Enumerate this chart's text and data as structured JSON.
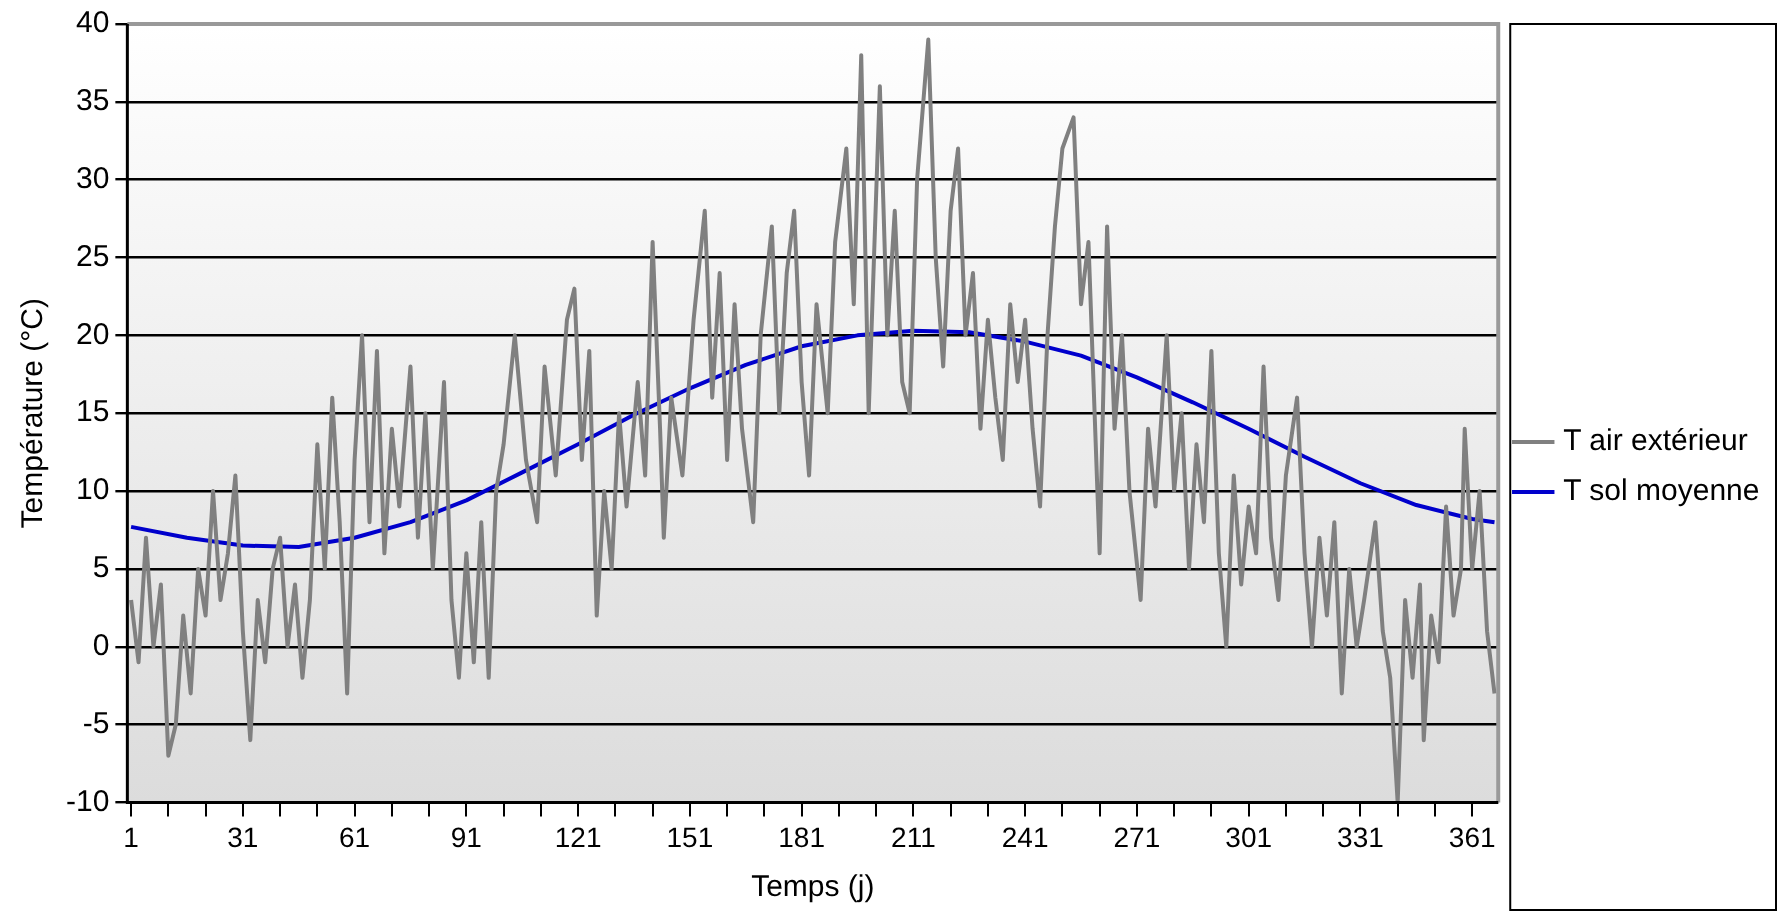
{
  "chart_data": {
    "type": "line",
    "xlabel": "Temps (j)",
    "ylabel": "Température (°C)",
    "xlim": [
      0,
      368
    ],
    "ylim": [
      -10,
      40
    ],
    "xticks": [
      1,
      {
        "value": 11,
        "label": null
      },
      {
        "value": 21,
        "label": null
      },
      31,
      {
        "value": 41,
        "label": null
      },
      {
        "value": 51,
        "label": null
      },
      61,
      {
        "value": 71,
        "label": null
      },
      {
        "value": 81,
        "label": null
      },
      91,
      {
        "value": 101,
        "label": null
      },
      {
        "value": 111,
        "label": null
      },
      121,
      {
        "value": 131,
        "label": null
      },
      {
        "value": 141,
        "label": null
      },
      151,
      {
        "value": 161,
        "label": null
      },
      {
        "value": 171,
        "label": null
      },
      181,
      {
        "value": 191,
        "label": null
      },
      {
        "value": 201,
        "label": null
      },
      211,
      {
        "value": 221,
        "label": null
      },
      {
        "value": 231,
        "label": null
      },
      241,
      {
        "value": 251,
        "label": null
      },
      {
        "value": 261,
        "label": null
      },
      271,
      {
        "value": 281,
        "label": null
      },
      {
        "value": 291,
        "label": null
      },
      301,
      {
        "value": 311,
        "label": null
      },
      {
        "value": 321,
        "label": null
      },
      331,
      {
        "value": 341,
        "label": null
      },
      {
        "value": 351,
        "label": null
      },
      361
    ],
    "yticks": [
      -10,
      -5,
      0,
      5,
      10,
      15,
      20,
      25,
      30,
      35,
      40
    ],
    "grid": "y",
    "legend": "right",
    "marker": "none",
    "line_style": "solid",
    "series": [
      {
        "name": "T air extérieur",
        "color": "#808080",
        "x": [
          1,
          3,
          5,
          7,
          9,
          11,
          13,
          15,
          17,
          19,
          21,
          23,
          25,
          27,
          29,
          31,
          33,
          35,
          37,
          39,
          41,
          43,
          45,
          47,
          49,
          51,
          53,
          55,
          57,
          59,
          61,
          63,
          65,
          67,
          69,
          71,
          73,
          76,
          78,
          80,
          82,
          85,
          87,
          89,
          91,
          93,
          95,
          97,
          99,
          101,
          104,
          107,
          110,
          112,
          115,
          118,
          120,
          122,
          124,
          126,
          128,
          130,
          132,
          134,
          137,
          139,
          141,
          143,
          144,
          146,
          149,
          152,
          155,
          157,
          159,
          161,
          163,
          165,
          168,
          170,
          173,
          175,
          177,
          179,
          181,
          183,
          185,
          188,
          190,
          193,
          195,
          197,
          199,
          202,
          204,
          206,
          208,
          210,
          212,
          215,
          217,
          219,
          221,
          223,
          225,
          227,
          229,
          231,
          233,
          235,
          237,
          239,
          241,
          243,
          245,
          247,
          249,
          251,
          254,
          256,
          258,
          261,
          263,
          265,
          267,
          269,
          272,
          274,
          276,
          279,
          281,
          283,
          285,
          287,
          289,
          291,
          293,
          295,
          297,
          299,
          301,
          303,
          305,
          307,
          309,
          311,
          314,
          316,
          318,
          320,
          322,
          324,
          326,
          328,
          330,
          332,
          335,
          337,
          339,
          341,
          343,
          345,
          347,
          348,
          350,
          352,
          354,
          356,
          358,
          359,
          361,
          363,
          365,
          367
        ],
        "values": [
          3,
          -1,
          7,
          0,
          4,
          -7,
          -5,
          2,
          -3,
          5,
          2,
          10,
          3,
          6,
          11,
          1,
          -6,
          3,
          -1,
          5,
          7,
          0,
          4,
          -2,
          3,
          13,
          5,
          16,
          8,
          -3,
          12,
          20,
          8,
          19,
          6,
          14,
          9,
          18,
          7,
          15,
          5,
          17,
          3,
          -2,
          6,
          -1,
          8,
          -2,
          10,
          13,
          20,
          12,
          8,
          18,
          11,
          21,
          23,
          12,
          19,
          2,
          10,
          5,
          15,
          9,
          17,
          11,
          26,
          14,
          7,
          16,
          11,
          21,
          28,
          16,
          24,
          12,
          22,
          14,
          8,
          20,
          27,
          15,
          24,
          28,
          17,
          11,
          22,
          15,
          26,
          32,
          22,
          38,
          15,
          36,
          20,
          28,
          17,
          15,
          30,
          39,
          25,
          18,
          28,
          32,
          20,
          24,
          14,
          21,
          16,
          12,
          22,
          17,
          21,
          14,
          9,
          20,
          27,
          32,
          34,
          22,
          26,
          6,
          27,
          14,
          20,
          10,
          3,
          14,
          9,
          20,
          10,
          15,
          5,
          13,
          8,
          19,
          6,
          0,
          11,
          4,
          9,
          6,
          18,
          7,
          3,
          11,
          16,
          6,
          0,
          7,
          2,
          8,
          -3,
          5,
          0,
          3,
          8,
          1,
          -2,
          -10,
          3,
          -2,
          4,
          -6,
          2,
          -1,
          9,
          2,
          5,
          14,
          5,
          10,
          1,
          -3
        ]
      },
      {
        "name": "T sol moyenne",
        "color": "#0000cc",
        "x": [
          1,
          16,
          31,
          46,
          61,
          76,
          91,
          106,
          121,
          136,
          151,
          166,
          181,
          196,
          211,
          226,
          241,
          256,
          271,
          286,
          301,
          316,
          331,
          346,
          361,
          367
        ],
        "values": [
          7.7,
          7.0,
          6.5,
          6.4,
          7.0,
          8.0,
          9.4,
          11.2,
          13.0,
          14.9,
          16.6,
          18.1,
          19.3,
          20.0,
          20.3,
          20.2,
          19.6,
          18.7,
          17.3,
          15.7,
          14.0,
          12.2,
          10.5,
          9.1,
          8.2,
          8.0
        ]
      }
    ]
  }
}
